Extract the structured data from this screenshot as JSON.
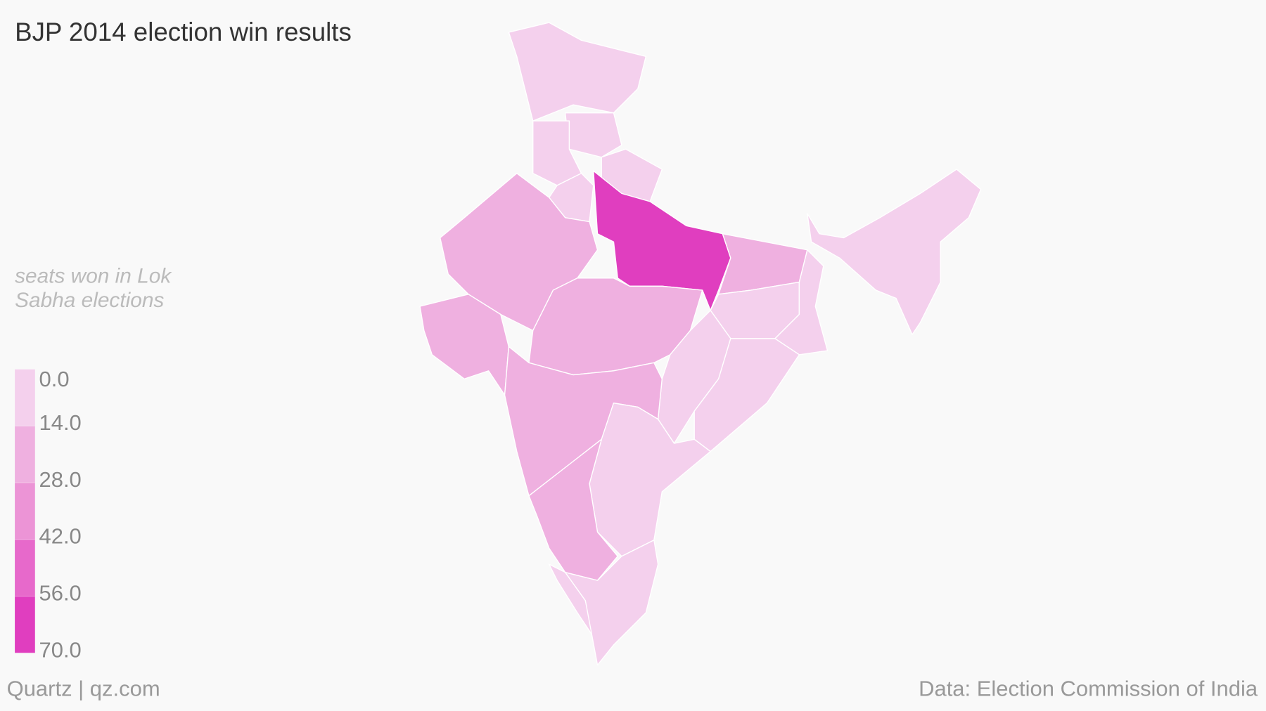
{
  "chart_data": {
    "type": "choropleth",
    "title": "BJP 2014 election win results",
    "legend_title": "seats won in Lok Sabha elections",
    "source": "Data: Election Commission of India",
    "credit": "Quartz | qz.com",
    "categories": [
      null,
      null,
      null,
      null,
      null,
      null,
      null,
      null,
      null,
      null,
      null,
      null,
      null,
      null,
      null,
      null,
      null,
      null,
      null,
      null
    ],
    "values": [
      3,
      4,
      2,
      5,
      7,
      25,
      26,
      71,
      27,
      22,
      12,
      2,
      10,
      1,
      23,
      3,
      17,
      0,
      1,
      8
    ],
    "ylim": [
      0,
      70
    ],
    "yticks": [
      {
        "value": 0,
        "label": "0.0"
      },
      {
        "value": 14,
        "label": "14.0"
      },
      {
        "value": 28,
        "label": "28.0"
      },
      {
        "value": 42,
        "label": "42.0"
      },
      {
        "value": 56,
        "label": "56.0"
      },
      {
        "value": 70,
        "label": "70.0"
      }
    ],
    "colors": [
      "#f4d0ed",
      "#efb0e0",
      "#ec94d6",
      "#e769cb",
      "#e03ebf"
    ]
  }
}
